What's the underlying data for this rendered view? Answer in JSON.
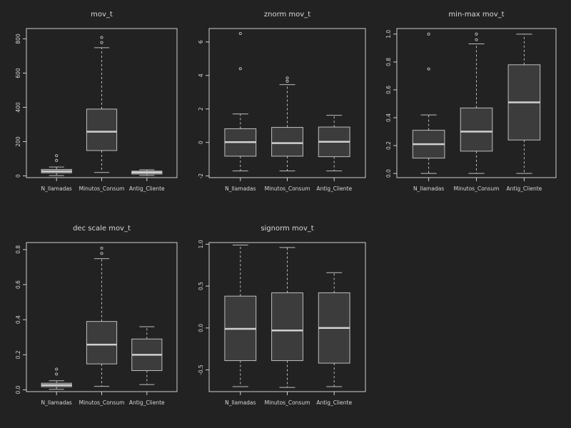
{
  "colors": {
    "background": "#222222",
    "panel_border": "#cfcfcf",
    "box_fill": "#3c3c3c",
    "box_stroke": "#bdbdbd",
    "median": "#d0d0d0",
    "text": "#d8d8d8"
  },
  "chart_data": [
    {
      "type": "boxplot",
      "title": "mov_t",
      "categories": [
        "N_llamadas",
        "Minutos_Consum",
        "Antig_Cliente"
      ],
      "ylim": [
        -10,
        860
      ],
      "yticks": [
        "0",
        "200",
        "400",
        "600",
        "800"
      ],
      "ytick_values": [
        0,
        200,
        400,
        600,
        800
      ],
      "boxes": [
        {
          "whisker_low": 2,
          "q1": 18,
          "median": 27,
          "q3": 38,
          "whisker_high": 52,
          "outliers": [
            90,
            118
          ]
        },
        {
          "whisker_low": 20,
          "q1": 148,
          "median": 258,
          "q3": 390,
          "whisker_high": 748,
          "outliers": [
            778,
            808
          ]
        },
        {
          "whisker_low": 3,
          "q1": 11,
          "median": 20,
          "q3": 28,
          "whisker_high": 36,
          "outliers": []
        }
      ]
    },
    {
      "type": "boxplot",
      "title": "znorm mov_t",
      "categories": [
        "N_llamadas",
        "Minutos_Consum",
        "Antig_Cliente"
      ],
      "ylim": [
        -2.1,
        6.8
      ],
      "yticks": [
        "-2",
        "0",
        "2",
        "4",
        "6"
      ],
      "ytick_values": [
        -2,
        0,
        2,
        4,
        6
      ],
      "boxes": [
        {
          "whisker_low": -1.7,
          "q1": -0.82,
          "median": 0.02,
          "q3": 0.82,
          "whisker_high": 1.7,
          "outliers": [
            4.4,
            6.5
          ]
        },
        {
          "whisker_low": -1.7,
          "q1": -0.82,
          "median": -0.04,
          "q3": 0.9,
          "whisker_high": 3.45,
          "outliers": [
            3.65,
            3.85
          ]
        },
        {
          "whisker_low": -1.7,
          "q1": -0.85,
          "median": 0.04,
          "q3": 0.92,
          "whisker_high": 1.62,
          "outliers": []
        }
      ]
    },
    {
      "type": "boxplot",
      "title": "min-max mov_t",
      "categories": [
        "N_llamadas",
        "Minutos_Consum",
        "Antig_Cliente"
      ],
      "ylim": [
        -0.03,
        1.04
      ],
      "yticks": [
        "0.0",
        "0.2",
        "0.4",
        "0.6",
        "0.8",
        "1.0"
      ],
      "ytick_values": [
        0,
        0.2,
        0.4,
        0.6,
        0.8,
        1.0
      ],
      "boxes": [
        {
          "whisker_low": 0.0,
          "q1": 0.11,
          "median": 0.21,
          "q3": 0.31,
          "whisker_high": 0.42,
          "outliers": [
            0.75,
            1.0
          ]
        },
        {
          "whisker_low": 0.0,
          "q1": 0.16,
          "median": 0.3,
          "q3": 0.47,
          "whisker_high": 0.93,
          "outliers": [
            0.96,
            1.0
          ]
        },
        {
          "whisker_low": 0.0,
          "q1": 0.24,
          "median": 0.51,
          "q3": 0.78,
          "whisker_high": 1.0,
          "outliers": []
        }
      ]
    },
    {
      "type": "boxplot",
      "title": "dec scale mov_t",
      "categories": [
        "N_llamadas",
        "Minutos_Consum",
        "Antig_Cliente"
      ],
      "ylim": [
        -0.01,
        0.84
      ],
      "yticks": [
        "0.0",
        "0.2",
        "0.4",
        "0.6",
        "0.8"
      ],
      "ytick_values": [
        0,
        0.2,
        0.4,
        0.6,
        0.8
      ],
      "boxes": [
        {
          "whisker_low": 0.003,
          "q1": 0.018,
          "median": 0.027,
          "q3": 0.038,
          "whisker_high": 0.052,
          "outliers": [
            0.09,
            0.118
          ]
        },
        {
          "whisker_low": 0.02,
          "q1": 0.148,
          "median": 0.258,
          "q3": 0.39,
          "whisker_high": 0.748,
          "outliers": [
            0.778,
            0.808
          ]
        },
        {
          "whisker_low": 0.03,
          "q1": 0.11,
          "median": 0.2,
          "q3": 0.29,
          "whisker_high": 0.36,
          "outliers": []
        }
      ]
    },
    {
      "type": "boxplot",
      "title": "signorm mov_t",
      "categories": [
        "N_llamadas",
        "Minutos_Consum",
        "Antig_Cliente"
      ],
      "ylim": [
        -0.76,
        1.02
      ],
      "yticks": [
        "-0.5",
        "0.0",
        "0.5",
        "1.0"
      ],
      "ytick_values": [
        -0.5,
        0,
        0.5,
        1.0
      ],
      "boxes": [
        {
          "whisker_low": -0.7,
          "q1": -0.39,
          "median": -0.01,
          "q3": 0.38,
          "whisker_high": 0.99,
          "outliers": []
        },
        {
          "whisker_low": -0.71,
          "q1": -0.39,
          "median": -0.03,
          "q3": 0.42,
          "whisker_high": 0.96,
          "outliers": []
        },
        {
          "whisker_low": -0.7,
          "q1": -0.42,
          "median": 0.0,
          "q3": 0.42,
          "whisker_high": 0.66,
          "outliers": []
        }
      ]
    }
  ]
}
